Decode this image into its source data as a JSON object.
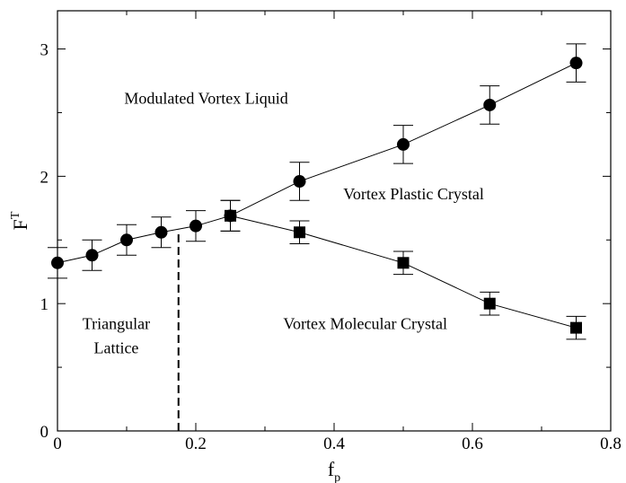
{
  "chart_data": {
    "type": "line",
    "title": "",
    "xlabel": "f",
    "xlabel_sub": "p",
    "ylabel": "F",
    "ylabel_sup": "T",
    "xlim": [
      0,
      0.8
    ],
    "ylim": [
      0,
      3.3
    ],
    "xticks": [
      0,
      0.2,
      0.4,
      0.6,
      0.8
    ],
    "xtick_labels": [
      "0",
      "0.2",
      "0.4",
      "0.6",
      "0.8"
    ],
    "yticks": [
      0,
      1,
      2,
      3
    ],
    "ytick_labels": [
      "0",
      "1",
      "2",
      "3"
    ],
    "grid": false,
    "legend": "none",
    "series": [
      {
        "marker": "circle",
        "color": "#000000",
        "x": [
          0,
          0.05,
          0.1,
          0.15,
          0.2,
          0.25,
          0.35,
          0.5,
          0.625,
          0.75
        ],
        "y": [
          1.32,
          1.38,
          1.5,
          1.56,
          1.61,
          1.69,
          1.96,
          2.25,
          2.56,
          2.89
        ],
        "err": [
          0.12,
          0.12,
          0.12,
          0.12,
          0.12,
          0.12,
          0.15,
          0.15,
          0.15,
          0.15
        ]
      },
      {
        "marker": "square",
        "color": "#000000",
        "x": [
          0.25,
          0.35,
          0.5,
          0.625,
          0.75
        ],
        "y": [
          1.69,
          1.56,
          1.32,
          1.0,
          0.81
        ],
        "err": [
          0.12,
          0.09,
          0.09,
          0.09,
          0.09
        ]
      }
    ],
    "dashed_line": {
      "x": 0.175,
      "y_from": 0,
      "y_to": 1.58
    },
    "annotations": [
      {
        "text": "Modulated Vortex Liquid",
        "x": 0.215,
        "y": 2.57
      },
      {
        "text": "Vortex Plastic Crystal",
        "x": 0.515,
        "y": 1.82
      },
      {
        "text": "Vortex Molecular Crystal",
        "x": 0.445,
        "y": 0.8
      },
      {
        "text": "Triangular",
        "x": 0.085,
        "y": 0.8
      },
      {
        "text": "Lattice",
        "x": 0.085,
        "y": 0.61
      }
    ]
  }
}
